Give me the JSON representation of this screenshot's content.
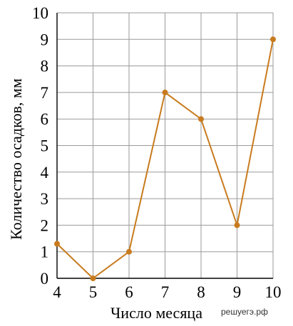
{
  "chart_data": {
    "type": "line",
    "title": "",
    "xlabel": "Число месяца",
    "ylabel": "Количество осадков, мм",
    "x": [
      4,
      5,
      6,
      7,
      8,
      9,
      10
    ],
    "series": [
      {
        "values": [
          1.3,
          0,
          1,
          7,
          6,
          2,
          9
        ]
      }
    ],
    "xlim": [
      4,
      10
    ],
    "ylim": [
      0,
      10
    ],
    "x_ticks": [
      "4",
      "5",
      "6",
      "7",
      "8",
      "9",
      "10"
    ],
    "y_ticks": [
      "0",
      "1",
      "2",
      "3",
      "4",
      "5",
      "6",
      "7",
      "8",
      "9",
      "10"
    ],
    "grid": true,
    "line_color": "#c87b1e",
    "grid_color": "#9a9a9a"
  },
  "watermark": "решуегэ.рф"
}
